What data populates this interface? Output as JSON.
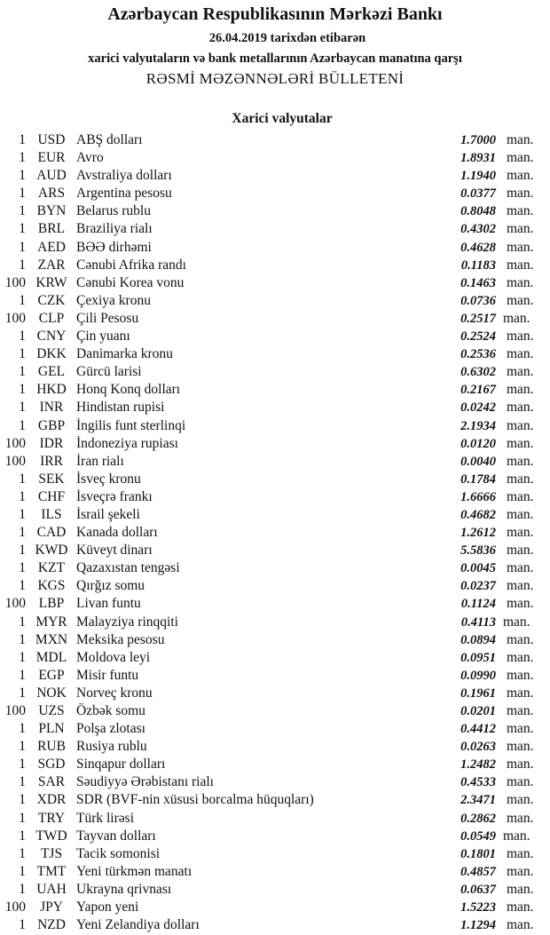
{
  "header": {
    "title": "Azərbaycan Respublikasının Mərkəzi Bankı",
    "date_line": "26.04.2019  tarixdən etibarən",
    "subtitle": "xarici valyutaların və bank metallarının Azərbaycan manatına qarşı",
    "bulletin_title": "RƏSMİ MƏZƏNNƏLƏRİ BÜLLETENİ"
  },
  "section_title": "Xarici valyutalar",
  "rates": [
    {
      "amount": "1",
      "code": "USD",
      "name": "ABŞ dolları",
      "value": "1.7000",
      "unit": "man."
    },
    {
      "amount": "1",
      "code": "EUR",
      "name": "Avro",
      "value": "1.8931",
      "unit": "man."
    },
    {
      "amount": "1",
      "code": "AUD",
      "name": "Avstraliya dolları",
      "value": "1.1940",
      "unit": "man."
    },
    {
      "amount": "1",
      "code": "ARS",
      "name": "Argentina pesosu",
      "value": "0.0377",
      "unit": "man."
    },
    {
      "amount": "1",
      "code": "BYN",
      "name": "Belarus rublu",
      "value": "0.8048",
      "unit": "man."
    },
    {
      "amount": "1",
      "code": "BRL",
      "name": "Braziliya rialı",
      "value": "0.4302",
      "unit": "man."
    },
    {
      "amount": "1",
      "code": "AED",
      "name": "BƏƏ dirhəmi",
      "value": "0.4628",
      "unit": "man."
    },
    {
      "amount": "1",
      "code": "ZAR",
      "name": "Cənubi Afrika randı",
      "value": "0.1183",
      "unit": "man."
    },
    {
      "amount": "100",
      "code": "KRW",
      "name": "Cənubi Korea vonu",
      "value": "0.1463",
      "unit": "man."
    },
    {
      "amount": "1",
      "code": "CZK",
      "name": "Çexiya kronu",
      "value": "0.0736",
      "unit": "man."
    },
    {
      "amount": "100",
      "code": "CLP",
      "name": "Çili Pesosu",
      "value": "0.2517",
      "unit": "man."
    },
    {
      "amount": "1",
      "code": "CNY",
      "name": "Çin yuanı",
      "value": "0.2524",
      "unit": "man."
    },
    {
      "amount": "1",
      "code": "DKK",
      "name": "Danimarka kronu",
      "value": "0.2536",
      "unit": "man."
    },
    {
      "amount": "1",
      "code": "GEL",
      "name": "Gürcü larisi",
      "value": "0.6302",
      "unit": "man."
    },
    {
      "amount": "1",
      "code": "HKD",
      "name": "Honq Konq dolları",
      "value": "0.2167",
      "unit": "man."
    },
    {
      "amount": "1",
      "code": "INR",
      "name": "Hindistan rupisi",
      "value": "0.0242",
      "unit": "man."
    },
    {
      "amount": "1",
      "code": "GBP",
      "name": "İngilis funt sterlinqi",
      "value": "2.1934",
      "unit": "man."
    },
    {
      "amount": "100",
      "code": "IDR",
      "name": "İndoneziya rupiası",
      "value": "0.0120",
      "unit": "man."
    },
    {
      "amount": "100",
      "code": "IRR",
      "name": "İran rialı",
      "value": "0.0040",
      "unit": "man."
    },
    {
      "amount": "1",
      "code": "SEK",
      "name": "İsveç kronu",
      "value": "0.1784",
      "unit": "man."
    },
    {
      "amount": "1",
      "code": "CHF",
      "name": "İsveçrə frankı",
      "value": "1.6666",
      "unit": "man."
    },
    {
      "amount": "1",
      "code": "ILS",
      "name": "İsrail şekeli",
      "value": "0.4682",
      "unit": "man."
    },
    {
      "amount": "1",
      "code": "CAD",
      "name": "Kanada dolları",
      "value": "1.2612",
      "unit": "man."
    },
    {
      "amount": "1",
      "code": "KWD",
      "name": "Küveyt dinarı",
      "value": "5.5836",
      "unit": "man."
    },
    {
      "amount": "1",
      "code": "KZT",
      "name": "Qazaxıstan tengəsi",
      "value": "0.0045",
      "unit": "man."
    },
    {
      "amount": "1",
      "code": "KGS",
      "name": "Qırğız somu",
      "value": "0.0237",
      "unit": "man."
    },
    {
      "amount": "100",
      "code": "LBP",
      "name": "Livan funtu",
      "value": "0.1124",
      "unit": "man."
    },
    {
      "amount": "1",
      "code": "MYR",
      "name": "Malayziya rinqqiti",
      "value": "0.4113",
      "unit": "man."
    },
    {
      "amount": "1",
      "code": "MXN",
      "name": "Meksika pesosu",
      "value": "0.0894",
      "unit": "man."
    },
    {
      "amount": "1",
      "code": "MDL",
      "name": "Moldova leyi",
      "value": "0.0951",
      "unit": "man."
    },
    {
      "amount": "1",
      "code": "EGP",
      "name": "Misir funtu",
      "value": "0.0990",
      "unit": "man."
    },
    {
      "amount": "1",
      "code": "NOK",
      "name": "Norveç kronu",
      "value": "0.1961",
      "unit": "man."
    },
    {
      "amount": "100",
      "code": "UZS",
      "name": "Özbək somu",
      "value": "0.0201",
      "unit": "man."
    },
    {
      "amount": "1",
      "code": "PLN",
      "name": "Polşa zlotası",
      "value": "0.4412",
      "unit": "man."
    },
    {
      "amount": "1",
      "code": "RUB",
      "name": "Rusiya rublu",
      "value": "0.0263",
      "unit": "man."
    },
    {
      "amount": "1",
      "code": "SGD",
      "name": "Sinqapur dolları",
      "value": "1.2482",
      "unit": "man."
    },
    {
      "amount": "1",
      "code": "SAR",
      "name": "Səudiyyə Ərəbistanı rialı",
      "value": "0.4533",
      "unit": "man."
    },
    {
      "amount": "1",
      "code": "XDR",
      "name": "SDR (BVF-nin xüsusi borcalma hüquqları)",
      "value": "2.3471",
      "unit": "man."
    },
    {
      "amount": "1",
      "code": "TRY",
      "name": "Türk lirəsi",
      "value": "0.2862",
      "unit": "man."
    },
    {
      "amount": "1",
      "code": "TWD",
      "name": "Tayvan dolları",
      "value": "0.0549",
      "unit": "man."
    },
    {
      "amount": "1",
      "code": "TJS",
      "name": "Tacik somonisi",
      "value": "0.1801",
      "unit": "man."
    },
    {
      "amount": "1",
      "code": "TMT",
      "name": "Yeni türkmən manatı",
      "value": "0.4857",
      "unit": "man."
    },
    {
      "amount": "1",
      "code": "UAH",
      "name": "Ukrayna qrivnası",
      "value": "0.0637",
      "unit": "man."
    },
    {
      "amount": "100",
      "code": "JPY",
      "name": "Yapon yeni",
      "value": "1.5223",
      "unit": "man."
    },
    {
      "amount": "1",
      "code": "NZD",
      "name": "Yeni Zelandiya dolları",
      "value": "1.1294",
      "unit": "man."
    }
  ]
}
